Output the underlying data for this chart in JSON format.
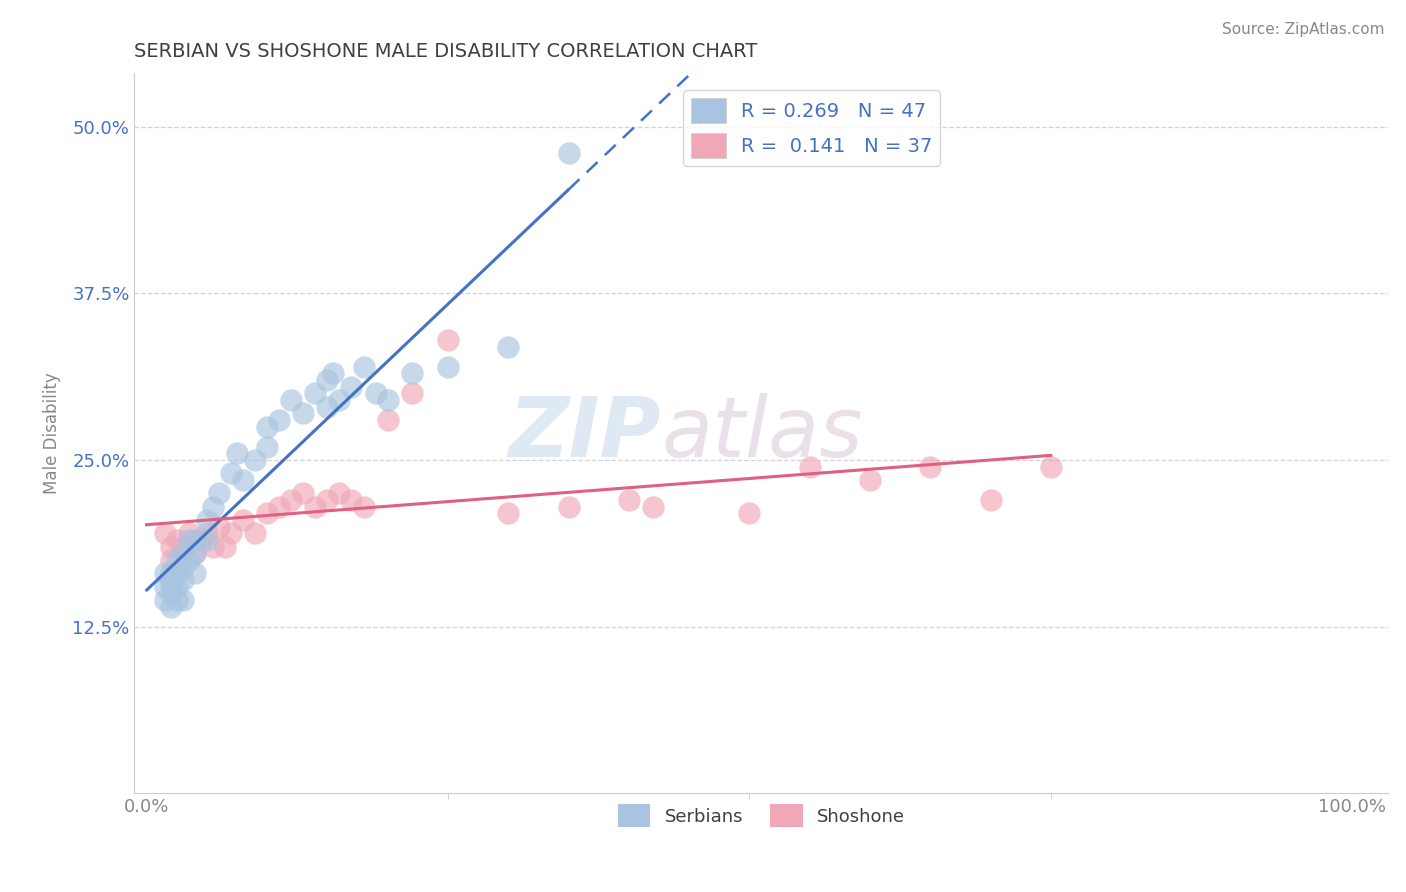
{
  "title": "SERBIAN VS SHOSHONE MALE DISABILITY CORRELATION CHART",
  "source": "Source: ZipAtlas.com",
  "xlabel": "",
  "ylabel": "Male Disability",
  "xlim": [
    0.0,
    1.0
  ],
  "ylim": [
    0.0,
    0.54
  ],
  "yticks": [
    0.125,
    0.25,
    0.375,
    0.5
  ],
  "ytick_labels": [
    "12.5%",
    "25.0%",
    "37.5%",
    "50.0%"
  ],
  "xticks": [
    0.0,
    1.0
  ],
  "xtick_labels": [
    "0.0%",
    "100.0%"
  ],
  "serbian_color": "#a8c4e0",
  "shoshone_color": "#f0a8b8",
  "serbian_line_color": "#4472c4",
  "shoshone_line_color": "#e06080",
  "legend_serbian_R": "0.269",
  "legend_serbian_N": "47",
  "legend_shoshone_R": "0.141",
  "legend_shoshone_N": "37",
  "watermark_zip": "ZIP",
  "watermark_atlas": "atlas",
  "background_color": "#ffffff",
  "grid_color": "#c8c8c8",
  "title_color": "#404040",
  "axis_color": "#888888",
  "serbian_x": [
    0.015,
    0.015,
    0.015,
    0.02,
    0.02,
    0.02,
    0.02,
    0.02,
    0.025,
    0.025,
    0.025,
    0.025,
    0.03,
    0.03,
    0.03,
    0.03,
    0.035,
    0.035,
    0.04,
    0.04,
    0.04,
    0.05,
    0.05,
    0.055,
    0.06,
    0.07,
    0.075,
    0.08,
    0.09,
    0.1,
    0.1,
    0.11,
    0.12,
    0.13,
    0.14,
    0.15,
    0.15,
    0.155,
    0.16,
    0.17,
    0.18,
    0.19,
    0.2,
    0.22,
    0.25,
    0.3,
    0.35
  ],
  "serbian_y": [
    0.165,
    0.155,
    0.145,
    0.165,
    0.16,
    0.155,
    0.15,
    0.14,
    0.175,
    0.165,
    0.155,
    0.145,
    0.18,
    0.17,
    0.16,
    0.145,
    0.19,
    0.175,
    0.19,
    0.18,
    0.165,
    0.205,
    0.19,
    0.215,
    0.225,
    0.24,
    0.255,
    0.235,
    0.25,
    0.275,
    0.26,
    0.28,
    0.295,
    0.285,
    0.3,
    0.31,
    0.29,
    0.315,
    0.295,
    0.305,
    0.32,
    0.3,
    0.295,
    0.315,
    0.32,
    0.335,
    0.48
  ],
  "shoshone_x": [
    0.015,
    0.02,
    0.02,
    0.025,
    0.03,
    0.035,
    0.04,
    0.045,
    0.05,
    0.055,
    0.06,
    0.065,
    0.07,
    0.08,
    0.09,
    0.1,
    0.11,
    0.12,
    0.13,
    0.14,
    0.15,
    0.16,
    0.17,
    0.18,
    0.2,
    0.22,
    0.25,
    0.3,
    0.35,
    0.4,
    0.42,
    0.5,
    0.55,
    0.6,
    0.65,
    0.7,
    0.75
  ],
  "shoshone_y": [
    0.195,
    0.185,
    0.175,
    0.19,
    0.185,
    0.195,
    0.18,
    0.19,
    0.195,
    0.185,
    0.2,
    0.185,
    0.195,
    0.205,
    0.195,
    0.21,
    0.215,
    0.22,
    0.225,
    0.215,
    0.22,
    0.225,
    0.22,
    0.215,
    0.28,
    0.3,
    0.34,
    0.21,
    0.215,
    0.22,
    0.215,
    0.21,
    0.245,
    0.235,
    0.245,
    0.22,
    0.245
  ]
}
